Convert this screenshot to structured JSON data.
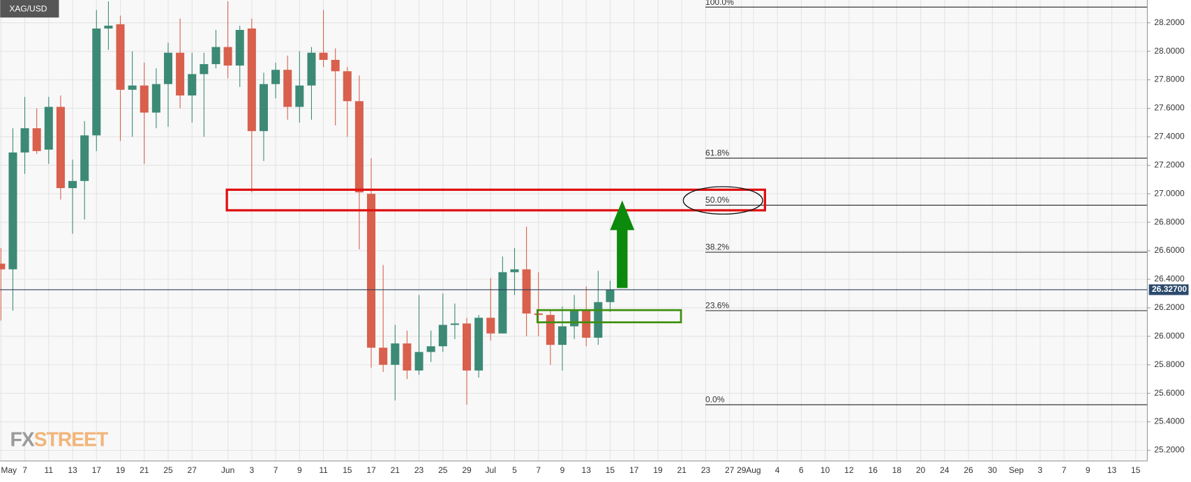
{
  "chart_data": {
    "type": "candlestick",
    "title": "XAG/USD",
    "categories": [
      "May",
      null,
      "7",
      null,
      "11",
      null,
      "13",
      null,
      "17",
      null,
      "19",
      null,
      "21",
      null,
      "25",
      null,
      "27",
      null,
      null,
      "Jun",
      null,
      "3",
      null,
      "7",
      null,
      "9",
      null,
      "11",
      null,
      "15",
      null,
      "17",
      null,
      "21",
      null,
      "23",
      null,
      "25",
      null,
      "29",
      null,
      "Jul",
      null,
      "5",
      null,
      "7",
      null,
      "9",
      null,
      "13",
      null,
      "15",
      null,
      "17",
      null,
      "19",
      null,
      "21",
      null,
      "23",
      null,
      "27",
      "29",
      "Aug",
      null,
      "4",
      null,
      "6",
      null,
      "10",
      null,
      "12",
      null,
      "16",
      null,
      "18",
      null,
      "20",
      null,
      "24",
      null,
      "26",
      null,
      "30",
      null,
      "Sep",
      null,
      "3",
      null,
      "7",
      null,
      "9",
      null,
      "13",
      null,
      "15",
      null
    ],
    "open": [
      26.51,
      26.47,
      27.29,
      27.46,
      27.31,
      27.61,
      27.04,
      27.09,
      27.41,
      28.16,
      28.19,
      27.73,
      27.76,
      27.57,
      27.77,
      27.99,
      27.69,
      27.84,
      27.91,
      28.03,
      27.9,
      28.16,
      27.44,
      27.77,
      27.87,
      27.61,
      27.76,
      27.99,
      27.94,
      27.86,
      27.65,
      27.0,
      25.92,
      25.8,
      25.95,
      25.76,
      25.89,
      25.93,
      26.08,
      26.09,
      25.76,
      26.13,
      26.02,
      26.45,
      26.47,
      26.16,
      26.15,
      25.94,
      26.07,
      26.18,
      25.99,
      26.24,
      null,
      null,
      null,
      null,
      null,
      null,
      null,
      null,
      null,
      null,
      null,
      null,
      null,
      null,
      null,
      null,
      null,
      null,
      null,
      null,
      null,
      null,
      null,
      null,
      null,
      null,
      null,
      null,
      null,
      null,
      null,
      null,
      null,
      null,
      null,
      null,
      null,
      null,
      null,
      null,
      null,
      null,
      null,
      null,
      null
    ],
    "high": [
      26.62,
      27.46,
      27.68,
      27.6,
      27.68,
      27.69,
      27.24,
      27.51,
      28.29,
      28.35,
      28.25,
      28.0,
      27.92,
      27.88,
      28.06,
      28.23,
      27.99,
      27.99,
      28.15,
      28.35,
      28.18,
      28.23,
      27.85,
      27.92,
      27.97,
      28.0,
      28.03,
      28.29,
      28.02,
      27.89,
      27.83,
      27.25,
      26.5,
      26.08,
      26.04,
      26.29,
      26.04,
      26.3,
      26.23,
      26.13,
      26.15,
      26.41,
      26.56,
      26.62,
      26.77,
      26.45,
      26.19,
      26.21,
      26.29,
      26.35,
      26.46,
      26.39,
      null,
      null,
      null,
      null,
      null,
      null,
      null,
      null,
      null,
      null,
      null,
      null,
      null,
      null,
      null,
      null,
      null,
      null,
      null,
      null,
      null,
      null,
      null,
      null,
      null,
      null,
      null,
      null,
      null,
      null,
      null,
      null,
      null,
      null,
      null,
      null,
      null,
      null,
      null,
      null,
      null,
      null,
      null,
      null,
      null
    ],
    "low": [
      26.11,
      26.18,
      27.14,
      27.28,
      27.21,
      26.96,
      26.72,
      26.82,
      27.3,
      28.01,
      27.37,
      27.4,
      27.21,
      27.46,
      27.47,
      27.6,
      27.5,
      27.4,
      27.88,
      27.81,
      27.75,
      27.01,
      27.23,
      27.67,
      27.52,
      27.5,
      27.52,
      27.89,
      27.48,
      27.4,
      26.61,
      25.78,
      25.75,
      25.55,
      25.7,
      25.73,
      25.82,
      25.89,
      25.98,
      25.52,
      25.71,
      25.97,
      26.02,
      26.29,
      26.0,
      26.0,
      25.8,
      25.76,
      25.98,
      25.93,
      25.94,
      26.17,
      null,
      null,
      null,
      null,
      null,
      null,
      null,
      null,
      null,
      null,
      null,
      null,
      null,
      null,
      null,
      null,
      null,
      null,
      null,
      null,
      null,
      null,
      null,
      null,
      null,
      null,
      null,
      null,
      null,
      null,
      null,
      null,
      null,
      null,
      null,
      null,
      null,
      null,
      null,
      null,
      null,
      null,
      null,
      null,
      null
    ],
    "close": [
      26.47,
      27.29,
      27.46,
      27.3,
      27.61,
      27.04,
      27.09,
      27.41,
      28.16,
      28.18,
      27.73,
      27.76,
      27.57,
      27.77,
      27.99,
      27.69,
      27.84,
      27.91,
      28.03,
      27.9,
      28.15,
      27.44,
      27.77,
      27.87,
      27.61,
      27.76,
      27.99,
      27.94,
      27.86,
      27.65,
      27.01,
      25.92,
      25.8,
      25.95,
      25.76,
      25.89,
      25.93,
      26.08,
      26.09,
      25.76,
      26.13,
      26.02,
      26.45,
      26.47,
      26.16,
      26.15,
      25.94,
      26.07,
      26.18,
      25.99,
      26.24,
      26.327,
      null,
      null,
      null,
      null,
      null,
      null,
      null,
      null,
      null,
      null,
      null,
      null,
      null,
      null,
      null,
      null,
      null,
      null,
      null,
      null,
      null,
      null,
      null,
      null,
      null,
      null,
      null,
      null,
      null,
      null,
      null,
      null,
      null,
      null,
      null,
      null,
      null,
      null,
      null,
      null,
      null,
      null,
      null,
      null,
      null
    ],
    "up_color": "#3c8a76",
    "down_color": "#d8604c",
    "ylim": [
      25.125,
      28.36
    ],
    "yticks": [
      {
        "value": 25.2,
        "label": "25.2000"
      },
      {
        "value": 25.4,
        "label": "25.4000"
      },
      {
        "value": 25.6,
        "label": "25.6000"
      },
      {
        "value": 25.8,
        "label": "25.8000"
      },
      {
        "value": 26.0,
        "label": "26.0000"
      },
      {
        "value": 26.2,
        "label": "26.2000"
      },
      {
        "value": 26.4,
        "label": "26.4000"
      },
      {
        "value": 26.6,
        "label": "26.6000"
      },
      {
        "value": 26.8,
        "label": "26.8000"
      },
      {
        "value": 27.0,
        "label": "27.0000"
      },
      {
        "value": 27.2,
        "label": "27.2000"
      },
      {
        "value": 27.4,
        "label": "27.4000"
      },
      {
        "value": 27.6,
        "label": "27.6000"
      },
      {
        "value": 27.8,
        "label": "27.8000"
      },
      {
        "value": 28.0,
        "label": "28.0000"
      },
      {
        "value": 28.2,
        "label": "28.2000"
      }
    ],
    "grid": true,
    "fib_levels": [
      {
        "value": 28.31,
        "label": "100.0%"
      },
      {
        "value": 27.25,
        "label": "61.8%"
      },
      {
        "value": 26.92,
        "label": "50.0%"
      },
      {
        "value": 26.59,
        "label": "38.2%"
      },
      {
        "value": 26.18,
        "label": "23.6%"
      },
      {
        "value": 25.52,
        "label": "0.0%"
      }
    ],
    "last_price": {
      "value": 26.327,
      "label": "26.32700"
    },
    "watermark": {
      "part1": "FX",
      "part2": "STREET"
    }
  }
}
